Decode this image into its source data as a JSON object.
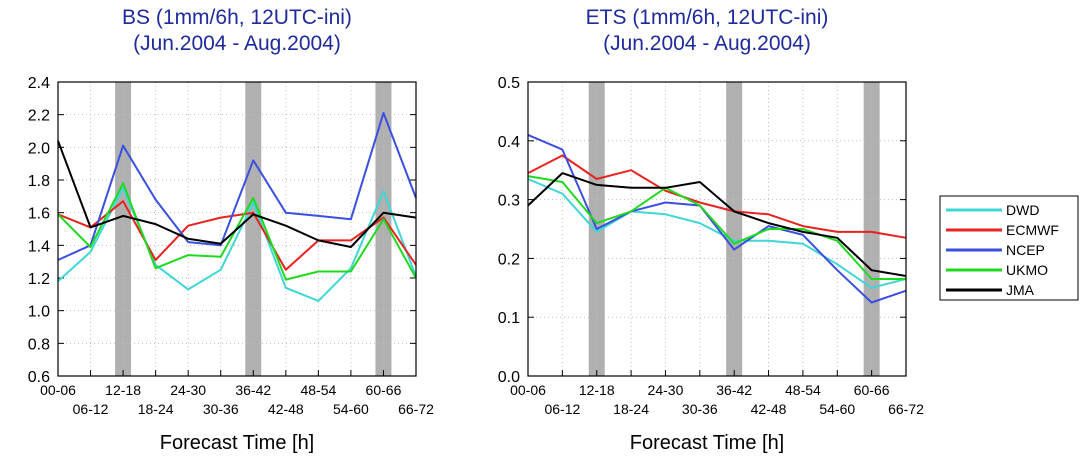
{
  "chart_data": [
    {
      "type": "line",
      "title": "BS (1mm/6h, 12UTC-ini)",
      "subtitle": "(Jun.2004 - Aug.2004)",
      "xlabel": "Forecast Time [h]",
      "ylabel": "",
      "categories": [
        "00-06",
        "06-12",
        "12-18",
        "18-24",
        "24-30",
        "30-36",
        "36-42",
        "42-48",
        "48-54",
        "54-60",
        "60-66",
        "66-72"
      ],
      "ylim": [
        0.6,
        2.4
      ],
      "yticks": [
        "0.6",
        "0.8",
        "1.0",
        "1.2",
        "1.4",
        "1.6",
        "1.8",
        "2.0",
        "2.2",
        "2.4"
      ],
      "shaded_categories": [
        "12-18",
        "36-42",
        "60-66"
      ],
      "grid": true,
      "series": [
        {
          "name": "DWD",
          "color": "#3fd6d6",
          "values": [
            1.18,
            1.36,
            1.75,
            1.28,
            1.13,
            1.25,
            1.66,
            1.14,
            1.06,
            1.26,
            1.73,
            1.21
          ]
        },
        {
          "name": "ECMWF",
          "color": "#e8231f",
          "values": [
            1.59,
            1.51,
            1.67,
            1.31,
            1.52,
            1.57,
            1.6,
            1.25,
            1.43,
            1.43,
            1.57,
            1.28
          ]
        },
        {
          "name": "NCEP",
          "color": "#3b4fe0",
          "values": [
            1.31,
            1.4,
            2.01,
            1.68,
            1.42,
            1.4,
            1.92,
            1.6,
            1.58,
            1.56,
            2.21,
            1.69
          ]
        },
        {
          "name": "UKMO",
          "color": "#1fd91f",
          "values": [
            1.59,
            1.39,
            1.78,
            1.26,
            1.34,
            1.33,
            1.69,
            1.19,
            1.24,
            1.24,
            1.56,
            1.2
          ]
        },
        {
          "name": "JMA",
          "color": "#000000",
          "values": [
            2.04,
            1.51,
            1.58,
            1.53,
            1.44,
            1.41,
            1.59,
            1.52,
            1.43,
            1.39,
            1.6,
            1.57
          ]
        }
      ]
    },
    {
      "type": "line",
      "title": "ETS (1mm/6h, 12UTC-ini)",
      "subtitle": "(Jun.2004 - Aug.2004)",
      "xlabel": "Forecast Time [h]",
      "ylabel": "",
      "categories": [
        "00-06",
        "06-12",
        "12-18",
        "18-24",
        "24-30",
        "30-36",
        "36-42",
        "42-48",
        "48-54",
        "54-60",
        "60-66",
        "66-72"
      ],
      "ylim": [
        0.0,
        0.5
      ],
      "yticks": [
        "0.0",
        "0.1",
        "0.2",
        "0.3",
        "0.4",
        "0.5"
      ],
      "shaded_categories": [
        "12-18",
        "36-42",
        "60-66"
      ],
      "grid": true,
      "series": [
        {
          "name": "DWD",
          "color": "#3fd6d6",
          "values": [
            0.335,
            0.31,
            0.245,
            0.28,
            0.275,
            0.26,
            0.23,
            0.23,
            0.225,
            0.19,
            0.15,
            0.165
          ]
        },
        {
          "name": "ECMWF",
          "color": "#e8231f",
          "values": [
            0.345,
            0.375,
            0.335,
            0.35,
            0.315,
            0.295,
            0.28,
            0.275,
            0.255,
            0.245,
            0.245,
            0.235
          ]
        },
        {
          "name": "NCEP",
          "color": "#3b4fe0",
          "values": [
            0.41,
            0.385,
            0.25,
            0.28,
            0.295,
            0.29,
            0.215,
            0.255,
            0.24,
            0.18,
            0.125,
            0.145
          ]
        },
        {
          "name": "UKMO",
          "color": "#1fd91f",
          "values": [
            0.34,
            0.33,
            0.26,
            0.28,
            0.32,
            0.29,
            0.225,
            0.25,
            0.25,
            0.23,
            0.165,
            0.165
          ]
        },
        {
          "name": "JMA",
          "color": "#000000",
          "values": [
            0.29,
            0.345,
            0.325,
            0.32,
            0.32,
            0.33,
            0.28,
            0.26,
            0.245,
            0.235,
            0.18,
            0.17
          ]
        }
      ]
    }
  ],
  "legend": {
    "placement": "right",
    "items": [
      {
        "name": "DWD",
        "color": "#3fd6d6"
      },
      {
        "name": "ECMWF",
        "color": "#e8231f"
      },
      {
        "name": "NCEP",
        "color": "#3b4fe0"
      },
      {
        "name": "UKMO",
        "color": "#1fd91f"
      },
      {
        "name": "JMA",
        "color": "#000000"
      }
    ]
  }
}
